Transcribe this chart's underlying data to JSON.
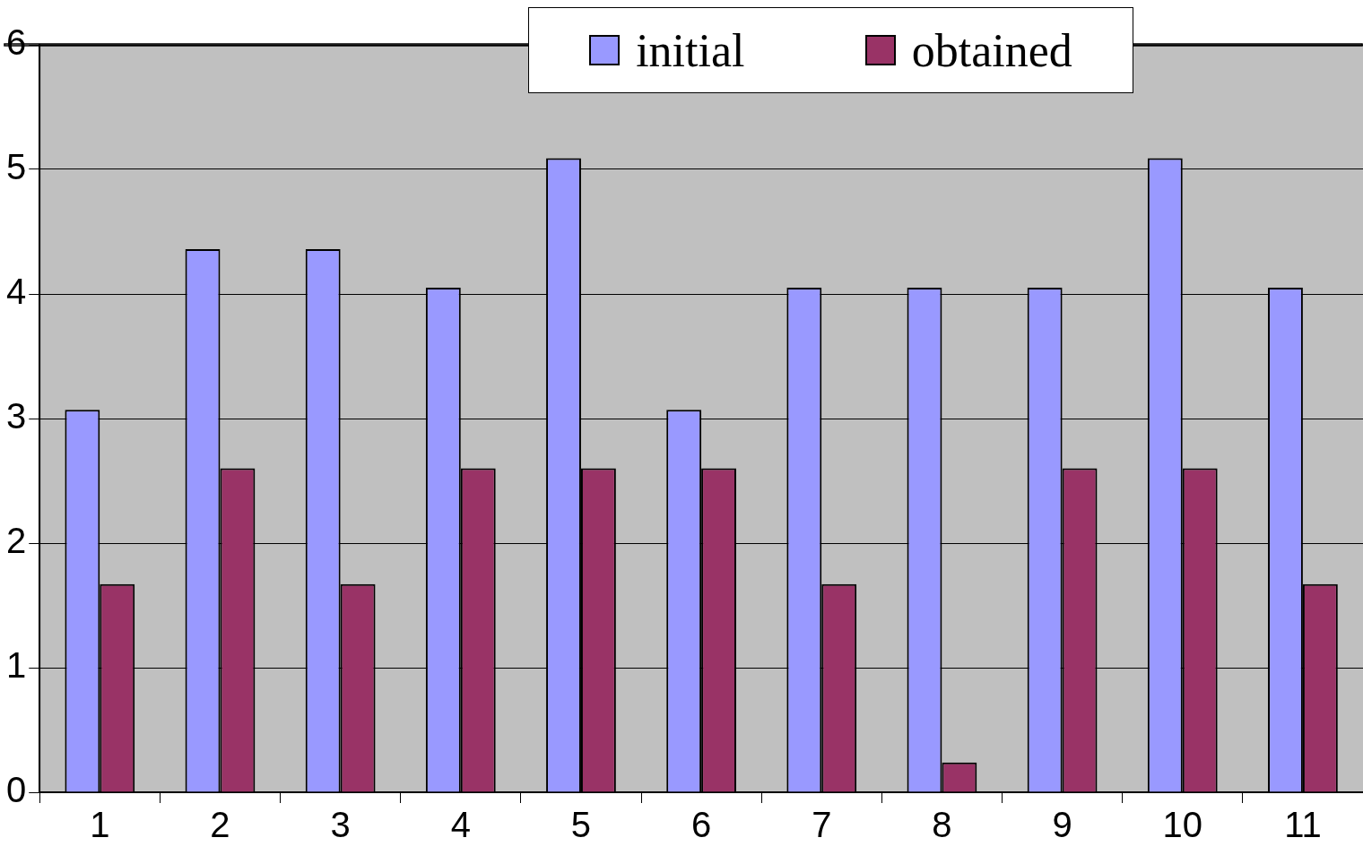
{
  "chart_data": {
    "type": "bar",
    "categories": [
      "1",
      "2",
      "3",
      "4",
      "5",
      "6",
      "7",
      "8",
      "9",
      "10",
      "11"
    ],
    "series": [
      {
        "name": "initial",
        "color": "#9999ff",
        "values": [
          3.07,
          4.36,
          4.36,
          4.05,
          5.09,
          3.07,
          4.05,
          4.05,
          4.05,
          5.09,
          4.05
        ]
      },
      {
        "name": "obtained",
        "color": "#993366",
        "values": [
          1.67,
          2.6,
          1.67,
          2.6,
          2.6,
          2.6,
          1.67,
          0.24,
          2.6,
          2.6,
          1.67
        ]
      }
    ],
    "ylim": [
      0,
      6
    ],
    "yticks": [
      0,
      1,
      2,
      3,
      4,
      5,
      6
    ],
    "grid": "y",
    "legend": "top"
  }
}
